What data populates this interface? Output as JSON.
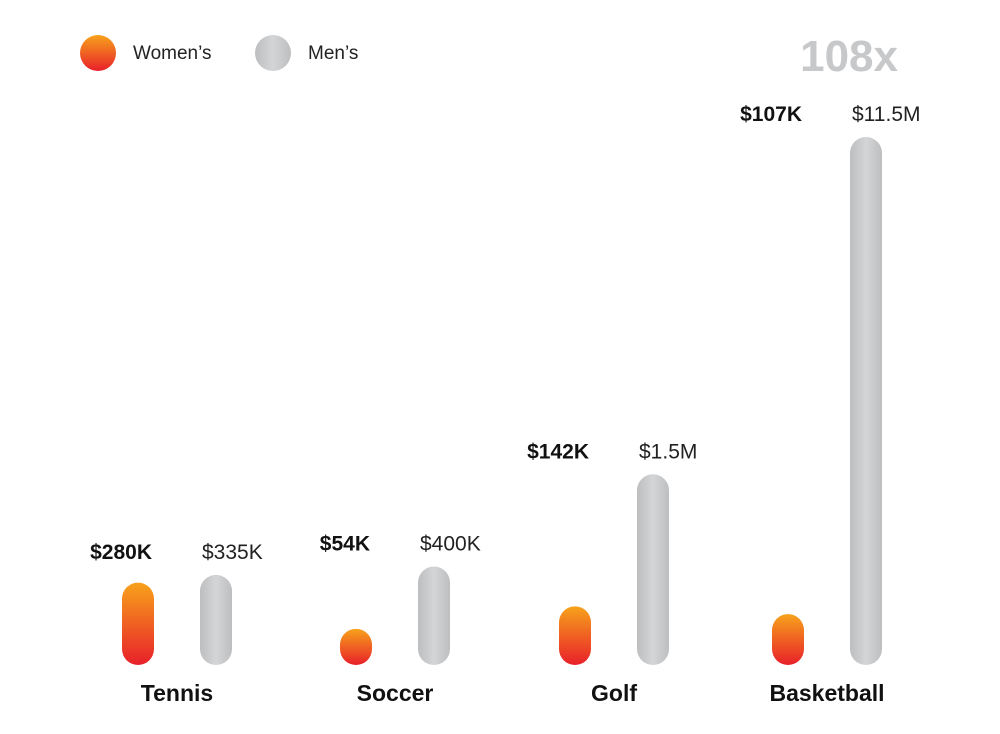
{
  "legend": {
    "women_label": "Women’s",
    "men_label": "Men’s"
  },
  "multiplier": "108x",
  "colors": {
    "women_top": "#f7a21b",
    "women_bottom": "#e8202a",
    "men": "#c8c9cb"
  },
  "chart_data": {
    "type": "bar",
    "categories": [
      "Tennis",
      "Soccer",
      "Golf",
      "Basketball"
    ],
    "series": [
      {
        "name": "Women’s",
        "values": [
          280000,
          54000,
          142000,
          107000
        ],
        "labels": [
          "$280K",
          "$54K",
          "$142K",
          "$107K"
        ]
      },
      {
        "name": "Men’s",
        "values": [
          335000,
          400000,
          1500000,
          11500000
        ],
        "labels": [
          "$335K",
          "$400K",
          "$1.5M",
          "$11.5M"
        ]
      }
    ],
    "annotation": "108x",
    "legend_position": "top-left",
    "grid": false
  }
}
